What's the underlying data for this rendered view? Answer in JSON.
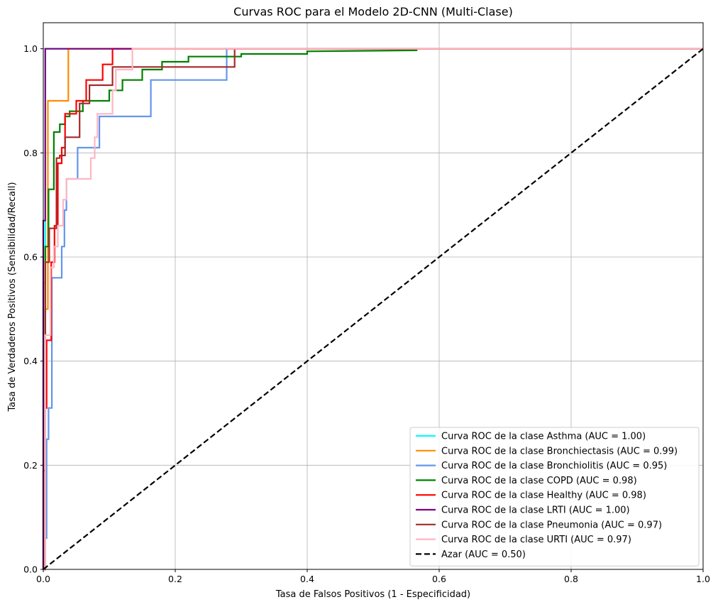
{
  "chart_data": {
    "type": "line",
    "title": "Curvas ROC para el Modelo 2D-CNN (Multi-Clase)",
    "xlabel": "Tasa de Falsos Positivos (1 - Especificidad)",
    "ylabel": "Tasa de Verdaderos Positivos (Sensibilidad/Recall)",
    "xlim": [
      0.0,
      1.0
    ],
    "ylim": [
      0.0,
      1.05
    ],
    "xticks": [
      "0.0",
      "0.2",
      "0.4",
      "0.6",
      "0.8",
      "1.0"
    ],
    "yticks": [
      "0.0",
      "0.2",
      "0.4",
      "0.6",
      "0.8",
      "1.0"
    ],
    "grid": true,
    "legend_position": "lower-right",
    "series": [
      {
        "name": "Curva ROC de la clase Asthma (AUC = 1.00)",
        "color": "#00ffff",
        "dashed": false,
        "x": [
          0.0,
          0.0,
          0.003,
          0.003,
          0.13,
          1.0
        ],
        "y": [
          0.0,
          0.55,
          0.55,
          1.0,
          1.0,
          1.0
        ]
      },
      {
        "name": "Curva ROC de la clase Bronchiectasis (AUC = 0.99)",
        "color": "#ff8c00",
        "dashed": false,
        "x": [
          0.0,
          0.003,
          0.003,
          0.007,
          0.007,
          0.038,
          0.038,
          1.0
        ],
        "y": [
          0.0,
          0.0,
          0.5,
          0.5,
          0.9,
          0.9,
          1.0,
          1.0
        ]
      },
      {
        "name": "Curva ROC de la clase Bronchiolitis (AUC = 0.95)",
        "color": "#6495ed",
        "dashed": false,
        "x": [
          0.0,
          0.003,
          0.003,
          0.005,
          0.005,
          0.008,
          0.008,
          0.013,
          0.013,
          0.028,
          0.028,
          0.032,
          0.032,
          0.035,
          0.035,
          0.052,
          0.052,
          0.055,
          0.055,
          0.075,
          0.075,
          0.085,
          0.085,
          0.09,
          0.09,
          0.163,
          0.163,
          0.278,
          0.278,
          1.0
        ],
        "y": [
          0.0,
          0.0,
          0.06,
          0.06,
          0.25,
          0.25,
          0.31,
          0.31,
          0.56,
          0.56,
          0.62,
          0.62,
          0.69,
          0.69,
          0.75,
          0.75,
          0.81,
          0.81,
          0.81,
          0.81,
          0.81,
          0.81,
          0.87,
          0.87,
          0.87,
          0.87,
          0.94,
          0.94,
          1.0,
          1.0
        ]
      },
      {
        "name": "Curva ROC de la clase COPD (AUC = 0.98)",
        "color": "#008000",
        "dashed": false,
        "x": [
          0.0,
          0.003,
          0.003,
          0.008,
          0.008,
          0.016,
          0.016,
          0.025,
          0.025,
          0.033,
          0.033,
          0.04,
          0.04,
          0.06,
          0.06,
          0.1,
          0.1,
          0.12,
          0.12,
          0.15,
          0.15,
          0.18,
          0.18,
          0.22,
          0.22,
          0.3,
          0.3,
          0.4,
          0.4,
          0.567
        ],
        "y": [
          0.0,
          0.0,
          0.62,
          0.62,
          0.73,
          0.73,
          0.84,
          0.84,
          0.855,
          0.855,
          0.87,
          0.87,
          0.88,
          0.88,
          0.9,
          0.9,
          0.92,
          0.92,
          0.94,
          0.94,
          0.96,
          0.96,
          0.975,
          0.975,
          0.985,
          0.985,
          0.99,
          0.99,
          0.995,
          0.997
        ]
      },
      {
        "name": "Curva ROC de la clase Healthy (AUC = 0.98)",
        "color": "#ff0000",
        "dashed": false,
        "x": [
          0.0,
          0.0,
          0.003,
          0.003,
          0.005,
          0.005,
          0.012,
          0.012,
          0.017,
          0.017,
          0.022,
          0.022,
          0.028,
          0.028,
          0.033,
          0.033,
          0.04,
          0.04,
          0.05,
          0.05,
          0.065,
          0.065,
          0.09,
          0.09,
          0.105,
          0.105,
          1.0
        ],
        "y": [
          0.0,
          0.19,
          0.19,
          0.31,
          0.31,
          0.44,
          0.44,
          0.59,
          0.59,
          0.66,
          0.66,
          0.78,
          0.78,
          0.81,
          0.81,
          0.875,
          0.875,
          0.875,
          0.875,
          0.9,
          0.9,
          0.94,
          0.94,
          0.97,
          0.97,
          1.0,
          1.0
        ]
      },
      {
        "name": "Curva ROC de la clase LRTI (AUC = 1.00)",
        "color": "#800080",
        "dashed": false,
        "x": [
          0.0,
          0.0,
          0.003,
          0.003,
          0.135
        ],
        "y": [
          0.0,
          0.67,
          0.67,
          1.0,
          1.0
        ]
      },
      {
        "name": "Curva ROC de la clase Pneumonia (AUC = 0.97)",
        "color": "#a52a2a",
        "dashed": false,
        "x": [
          0.0,
          0.003,
          0.003,
          0.009,
          0.009,
          0.02,
          0.02,
          0.025,
          0.025,
          0.033,
          0.033,
          0.055,
          0.055,
          0.07,
          0.07,
          0.085,
          0.085,
          0.1,
          0.1,
          0.105,
          0.105,
          0.29,
          0.29,
          1.0
        ],
        "y": [
          0.0,
          0.0,
          0.59,
          0.59,
          0.655,
          0.655,
          0.79,
          0.79,
          0.795,
          0.795,
          0.83,
          0.83,
          0.895,
          0.895,
          0.93,
          0.93,
          0.93,
          0.93,
          0.93,
          0.93,
          0.965,
          0.965,
          1.0,
          1.0
        ]
      },
      {
        "name": "Curva ROC de la clase URTI (AUC = 0.97)",
        "color": "#ffb6c1",
        "dashed": false,
        "x": [
          0.0,
          0.003,
          0.003,
          0.011,
          0.011,
          0.016,
          0.016,
          0.022,
          0.022,
          0.03,
          0.03,
          0.035,
          0.035,
          0.072,
          0.072,
          0.078,
          0.078,
          0.082,
          0.082,
          0.105,
          0.105,
          0.11,
          0.11,
          0.135,
          0.135,
          1.0
        ],
        "y": [
          0.0,
          0.0,
          0.45,
          0.45,
          0.58,
          0.58,
          0.62,
          0.62,
          0.66,
          0.66,
          0.71,
          0.71,
          0.75,
          0.75,
          0.79,
          0.79,
          0.83,
          0.83,
          0.875,
          0.875,
          0.92,
          0.92,
          0.96,
          0.96,
          1.0,
          1.0
        ]
      },
      {
        "name": "Azar (AUC = 0.50)",
        "color": "#000000",
        "dashed": true,
        "x": [
          0.0,
          1.0
        ],
        "y": [
          0.0,
          1.0
        ]
      }
    ]
  }
}
